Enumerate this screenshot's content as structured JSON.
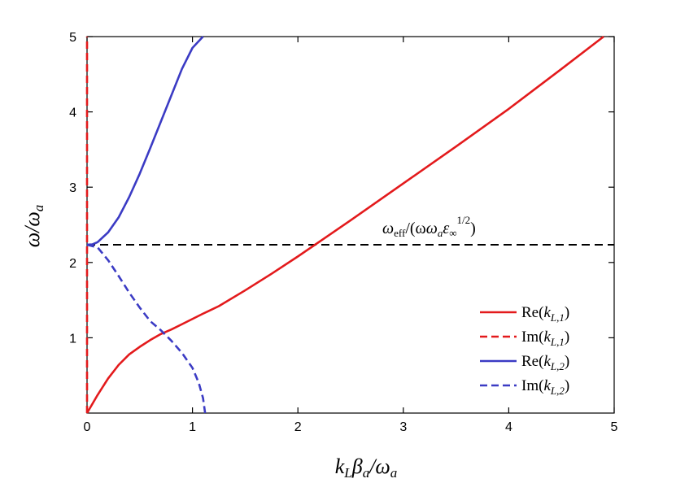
{
  "chart_data": {
    "type": "line",
    "title": "",
    "xlabel": {
      "base": "k",
      "sub1": "L",
      "mid": "β",
      "sub2": "a",
      "rest": "/ω",
      "sub3": "a"
    },
    "ylabel": {
      "base": "ω/ω",
      "sub": "a"
    },
    "xlim": [
      0,
      5
    ],
    "ylim": [
      0,
      5
    ],
    "xticks": [
      "0",
      "1",
      "2",
      "3",
      "4",
      "5"
    ],
    "yticks": [
      "1",
      "2",
      "3",
      "4",
      "5"
    ],
    "grid": false,
    "legend_position": "bottom-right",
    "annotation": {
      "text_pre": "ω",
      "sub1": "eff",
      "mid": "/(ω",
      "sub2": "a",
      "eps": "ε",
      "sub3": "∞",
      "sup": "1/2",
      "close": ")"
    },
    "hline": {
      "y": 2.236,
      "color": "#000000",
      "style": "dashed"
    },
    "series": [
      {
        "name": {
          "pre": "Re(",
          "k": "k",
          "sub": "L,1",
          "post": ")"
        },
        "color": "#e31a1c",
        "style": "solid",
        "points": [
          [
            0,
            0
          ],
          [
            0.1,
            0.24
          ],
          [
            0.2,
            0.46
          ],
          [
            0.3,
            0.64
          ],
          [
            0.4,
            0.78
          ],
          [
            0.5,
            0.88
          ],
          [
            0.6,
            0.97
          ],
          [
            0.7,
            1.05
          ],
          [
            0.8,
            1.11
          ],
          [
            0.9,
            1.18
          ],
          [
            1.0,
            1.25
          ],
          [
            1.1,
            1.32
          ],
          [
            1.25,
            1.42
          ],
          [
            1.5,
            1.63
          ],
          [
            1.75,
            1.85
          ],
          [
            2.0,
            2.08
          ],
          [
            2.25,
            2.32
          ],
          [
            2.5,
            2.56
          ],
          [
            3.0,
            3.05
          ],
          [
            3.5,
            3.54
          ],
          [
            4.0,
            4.04
          ],
          [
            4.5,
            4.57
          ],
          [
            4.9,
            5.0
          ]
        ]
      },
      {
        "name": {
          "pre": "Im(",
          "k": "k",
          "sub": "L,1",
          "post": ")"
        },
        "color": "#e31a1c",
        "style": "dashed",
        "points": [
          [
            0,
            0
          ],
          [
            0,
            5
          ]
        ]
      },
      {
        "name": {
          "pre": "Re(",
          "k": "k",
          "sub": "L,2",
          "post": ")"
        },
        "color": "#3b3bc4",
        "style": "solid",
        "points": [
          [
            0,
            2.236
          ],
          [
            0.05,
            2.24
          ],
          [
            0.1,
            2.27
          ],
          [
            0.2,
            2.4
          ],
          [
            0.3,
            2.6
          ],
          [
            0.4,
            2.87
          ],
          [
            0.5,
            3.18
          ],
          [
            0.6,
            3.52
          ],
          [
            0.7,
            3.87
          ],
          [
            0.8,
            4.22
          ],
          [
            0.9,
            4.57
          ],
          [
            1.0,
            4.85
          ],
          [
            1.1,
            5.0
          ]
        ]
      },
      {
        "name": {
          "pre": "Im(",
          "k": "k",
          "sub": "L,2",
          "post": ")"
        },
        "color": "#3b3bc4",
        "style": "dashed",
        "points": [
          [
            0,
            2.236
          ],
          [
            0.1,
            2.2
          ],
          [
            0.2,
            2.03
          ],
          [
            0.3,
            1.82
          ],
          [
            0.4,
            1.6
          ],
          [
            0.5,
            1.4
          ],
          [
            0.6,
            1.22
          ],
          [
            0.7,
            1.1
          ],
          [
            0.8,
            0.96
          ],
          [
            0.9,
            0.8
          ],
          [
            1.0,
            0.6
          ],
          [
            1.06,
            0.4
          ],
          [
            1.1,
            0.2
          ],
          [
            1.12,
            0.0
          ]
        ]
      }
    ]
  }
}
